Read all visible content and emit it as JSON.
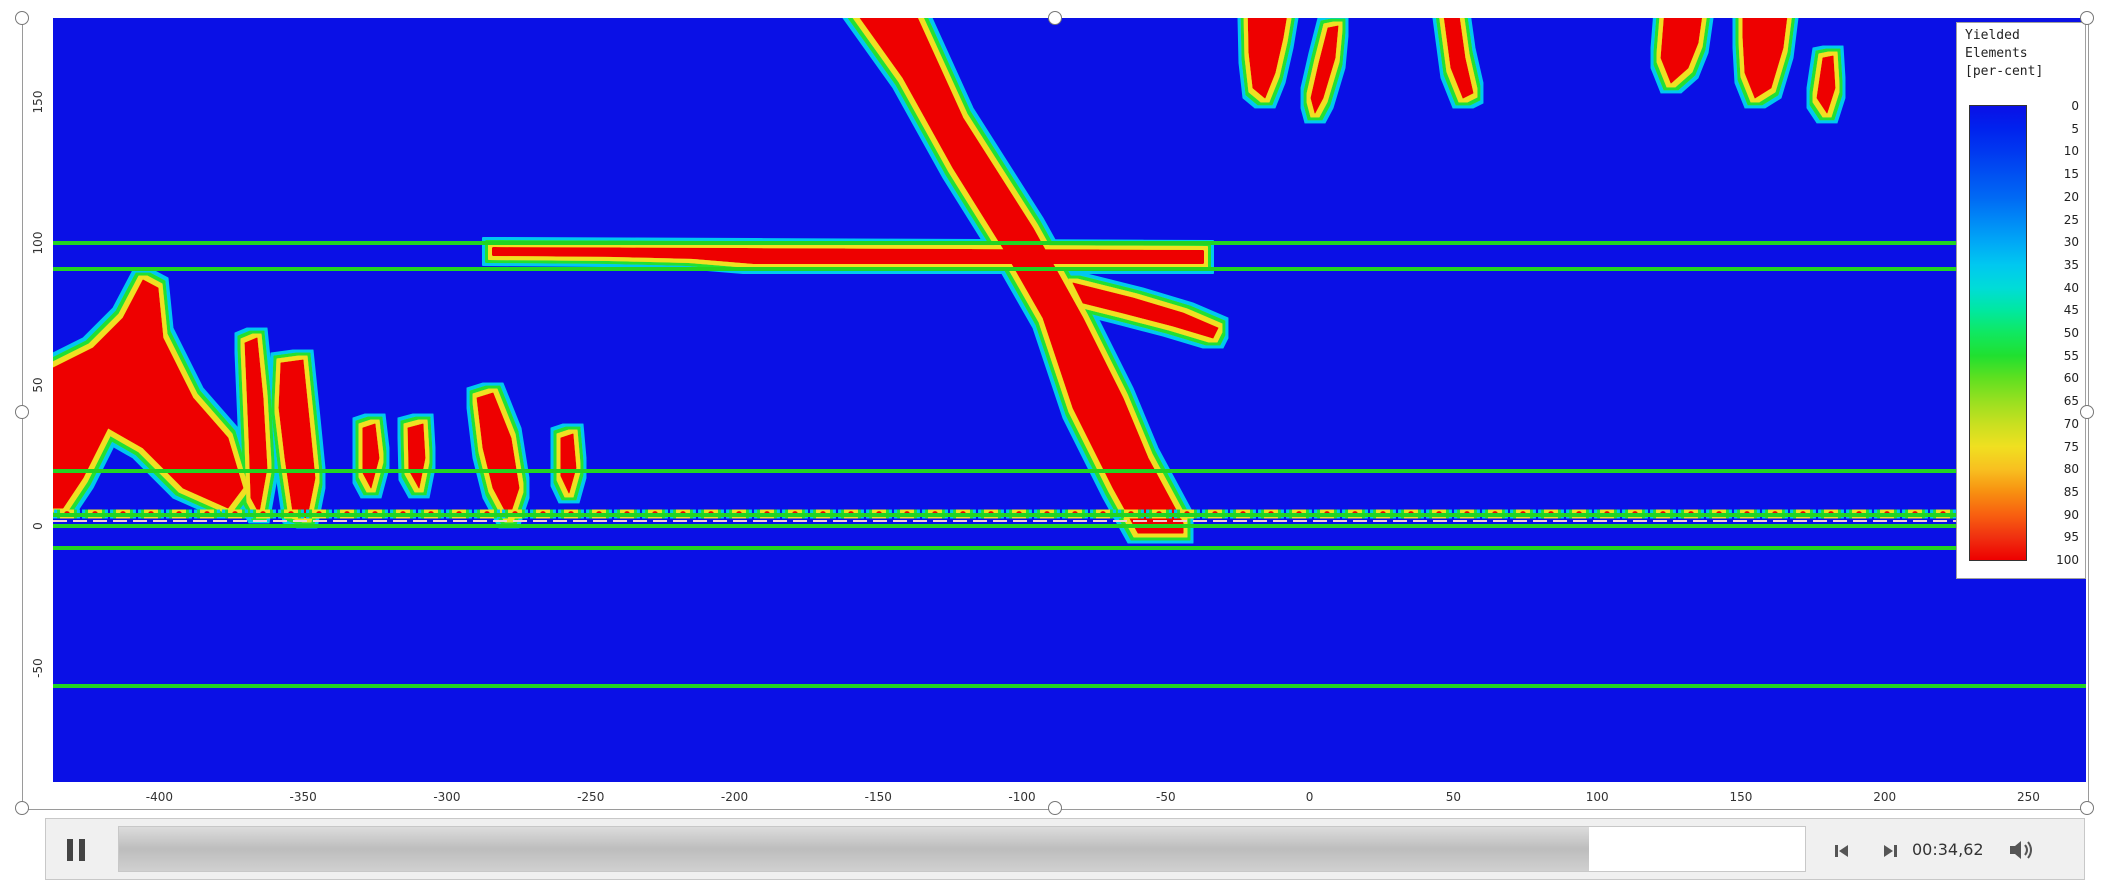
{
  "legend": {
    "title_lines": [
      "Yielded",
      "Elements",
      "[per-cent]"
    ],
    "values": [
      "0",
      "5",
      "10",
      "15",
      "20",
      "25",
      "30",
      "35",
      "40",
      "45",
      "50",
      "55",
      "60",
      "65",
      "70",
      "75",
      "80",
      "85",
      "90",
      "95",
      "100"
    ],
    "colors": [
      "#0a10e6",
      "#0022ee",
      "#0038f0",
      "#0050f2",
      "#0068f4",
      "#0088f6",
      "#00a8f6",
      "#00c8f0",
      "#00dcd8",
      "#00e8a0",
      "#10e860",
      "#20e030",
      "#60e020",
      "#98e020",
      "#c8e020",
      "#f0e020",
      "#f8c020",
      "#f89010",
      "#f86010",
      "#f03010",
      "#ee0000"
    ]
  },
  "plot": {
    "background_color": "#0a10e6",
    "yield_color": "#ee0000",
    "horizon_color": "#22d422",
    "y_ticks": [
      "150",
      "100",
      "50",
      "0",
      "-50"
    ],
    "x_ticks": [
      "-400",
      "-350",
      "-300",
      "-250",
      "-200",
      "-150",
      "-100",
      "-50",
      "0",
      "50",
      "100",
      "150",
      "200",
      "250"
    ],
    "xlim": [
      -437,
      270
    ],
    "ylim": [
      -90,
      180
    ]
  },
  "player": {
    "state_icon": "pause-icon",
    "progress_fraction": 0.872,
    "time": "00:34,62",
    "prev_icon": "step-back-icon",
    "next_icon": "step-forward-icon",
    "volume_icon": "volume-icon"
  }
}
